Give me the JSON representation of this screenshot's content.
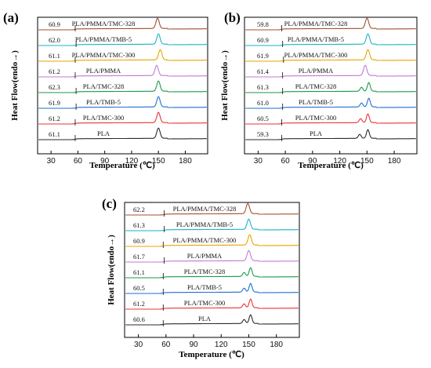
{
  "chart_data": [
    {
      "type": "line",
      "panel": "(a)",
      "xlabel": "Temperature (℃)",
      "ylabel": "Heat Flow(endo→)",
      "xlim": [
        15,
        205
      ],
      "xticks": [
        30,
        60,
        90,
        120,
        150,
        180
      ],
      "series": [
        {
          "name": "PLA",
          "tg": "61.1",
          "color": "#2b2b2b",
          "peaks": [
            150
          ],
          "tgx": 57
        },
        {
          "name": "PLA/TMC-300",
          "tg": "61.2",
          "color": "#e8333a",
          "peaks": [
            150
          ],
          "tgx": 57
        },
        {
          "name": "PLA/TMB-5",
          "tg": "61.9",
          "color": "#1f6fd1",
          "peaks": [
            150
          ],
          "tgx": 58
        },
        {
          "name": "PLA/TMC-328",
          "tg": "62.3",
          "color": "#1a9a4a",
          "peaks": [
            150
          ],
          "tgx": 58
        },
        {
          "name": "PLA/PMMA",
          "tg": "61.2",
          "color": "#c07ad8",
          "peaks": [
            148
          ],
          "tgx": 57
        },
        {
          "name": "PLA/PMMA/TMC-300",
          "tg": "61.1",
          "color": "#e8a400",
          "peaks": [
            152
          ],
          "tgx": 57
        },
        {
          "name": "PLA/PMMA/TMB-5",
          "tg": "62.0",
          "color": "#19b4c8",
          "peaks": [
            150
          ],
          "tgx": 58
        },
        {
          "name": "PLA/PMMA/TMC-328",
          "tg": "60.9",
          "color": "#a0522d",
          "peaks": [
            149
          ],
          "tgx": 57
        }
      ]
    },
    {
      "type": "line",
      "panel": "(b)",
      "xlabel": "Temperature (℃)",
      "ylabel": "Heat Flow(endo→)",
      "xlim": [
        15,
        205
      ],
      "xticks": [
        30,
        60,
        90,
        120,
        150,
        180
      ],
      "series": [
        {
          "name": "PLA",
          "tg": "59.3",
          "color": "#2b2b2b",
          "peaks": [
            142,
            151
          ],
          "tgx": 56
        },
        {
          "name": "PLA/TMC-300",
          "tg": "60.5",
          "color": "#e8333a",
          "peaks": [
            143,
            151
          ],
          "tgx": 56
        },
        {
          "name": "PLA/TMB-5",
          "tg": "61.0",
          "color": "#1f6fd1",
          "peaks": [
            144,
            152
          ],
          "tgx": 57
        },
        {
          "name": "PLA/TMC-328",
          "tg": "61.3",
          "color": "#1a9a4a",
          "peaks": [
            144,
            152
          ],
          "tgx": 57
        },
        {
          "name": "PLA/PMMA",
          "tg": "61.4",
          "color": "#c07ad8",
          "peaks": [
            148
          ],
          "tgx": 57
        },
        {
          "name": "PLA/PMMA/TMC-300",
          "tg": "61.9",
          "color": "#e8a400",
          "peaks": [
            151
          ],
          "tgx": 58
        },
        {
          "name": "PLA/PMMA/TMB-5",
          "tg": "60.9",
          "color": "#19b4c8",
          "peaks": [
            151
          ],
          "tgx": 57
        },
        {
          "name": "PLA/PMMA/TMC-328",
          "tg": "59.8",
          "color": "#a0522d",
          "peaks": [
            150
          ],
          "tgx": 56
        }
      ]
    },
    {
      "type": "line",
      "panel": "(c)",
      "xlabel": "Temperature (℃)",
      "ylabel": "Heat Flow(endo→)",
      "xlim": [
        15,
        205
      ],
      "xticks": [
        30,
        60,
        90,
        120,
        150,
        180
      ],
      "series": [
        {
          "name": "PLA",
          "tg": "60.6",
          "color": "#2b2b2b",
          "peaks": [
            145,
            152
          ],
          "tgx": 57
        },
        {
          "name": "PLA/TMC-300",
          "tg": "61.2",
          "color": "#e8333a",
          "peaks": [
            145,
            152
          ],
          "tgx": 57
        },
        {
          "name": "PLA/TMB-5",
          "tg": "60.5",
          "color": "#1f6fd1",
          "peaks": [
            145,
            152
          ],
          "tgx": 57
        },
        {
          "name": "PLA/TMC-328",
          "tg": "61.1",
          "color": "#1a9a4a",
          "peaks": [
            145,
            152
          ],
          "tgx": 57
        },
        {
          "name": "PLA/PMMA",
          "tg": "61.7",
          "color": "#c07ad8",
          "peaks": [
            150
          ],
          "tgx": 58
        },
        {
          "name": "PLA/PMMA/TMC-300",
          "tg": "60.9",
          "color": "#e8a400",
          "peaks": [
            151
          ],
          "tgx": 57
        },
        {
          "name": "PLA/PMMA/TMB-5",
          "tg": "61.3",
          "color": "#19b4c8",
          "peaks": [
            150
          ],
          "tgx": 58
        },
        {
          "name": "PLA/PMMA/TMC-328",
          "tg": "62.2",
          "color": "#a0522d",
          "peaks": [
            149
          ],
          "tgx": 58
        }
      ]
    }
  ]
}
